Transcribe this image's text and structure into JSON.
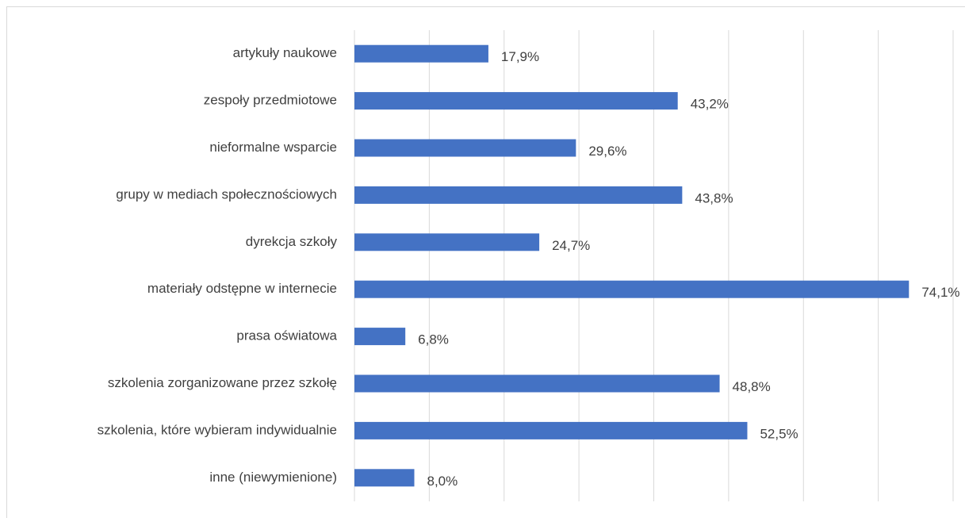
{
  "chart_data": {
    "type": "bar",
    "orientation": "horizontal",
    "categories": [
      "artykuły naukowe",
      "zespoły przedmiotowe",
      "nieformalne wsparcie",
      "grupy w mediach społecznościowych",
      "dyrekcja szkoły",
      "materiały odstępne w internecie",
      "prasa oświatowa",
      "szkolenia zorganizowane przez szkołę",
      "szkolenia, które wybieram indywidualnie",
      "inne (niewymienione)"
    ],
    "values": [
      17.9,
      43.2,
      29.6,
      43.8,
      24.7,
      74.1,
      6.8,
      48.8,
      52.5,
      8.0
    ],
    "value_labels": [
      "17,9%",
      "43,2%",
      "29,6%",
      "43,8%",
      "24,7%",
      "74,1%",
      "6,8%",
      "48,8%",
      "52,5%",
      "8,0%"
    ],
    "color": "#4472c4",
    "xlim": [
      0,
      80
    ],
    "xticks": [
      0,
      10,
      20,
      30,
      40,
      50,
      60,
      70,
      80
    ],
    "grid": true
  }
}
